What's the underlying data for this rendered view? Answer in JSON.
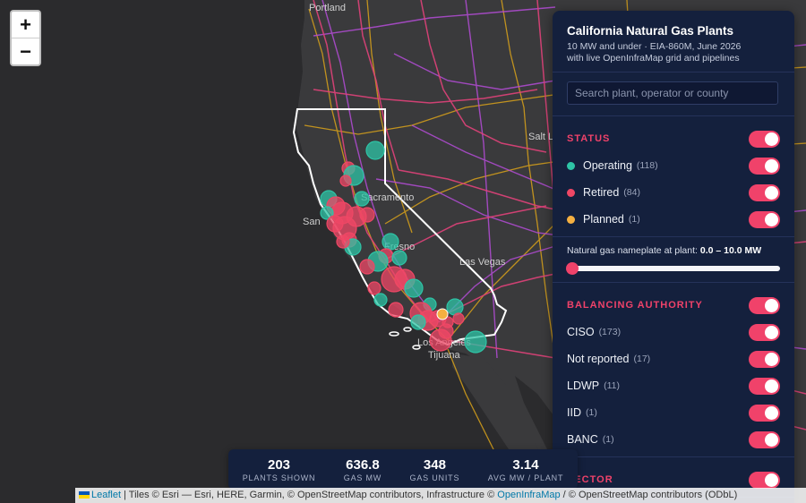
{
  "map": {
    "zoom_in": "+",
    "zoom_out": "−",
    "city_labels": [
      "Portland",
      "Salt L",
      "Sacramento",
      "San",
      "Fresno",
      "Las Vegas",
      "Los Angeles",
      "Tijuana"
    ],
    "colors": {
      "operating": "#2ec4a6",
      "retired": "#ef4765",
      "planned": "#f5b041",
      "power_lines": "#e0427a",
      "pipelines": "#b44cd6",
      "roads": "#d9a21a"
    }
  },
  "panel": {
    "title": "California Natural Gas Plants",
    "subtitle_line1": "10 MW and under · EIA-860M, June 2026",
    "subtitle_line2": "with live OpenInfraMap grid and pipelines",
    "search_placeholder": "Search plant, operator or county",
    "status": {
      "title": "STATUS",
      "items": [
        {
          "label": "Operating",
          "count": "(118)",
          "color": "#2ec4a6"
        },
        {
          "label": "Retired",
          "count": "(84)",
          "color": "#ef4765"
        },
        {
          "label": "Planned",
          "count": "(1)",
          "color": "#f5b041"
        }
      ]
    },
    "slider": {
      "label": "Natural gas nameplate at plant:",
      "range": "0.0 – 10.0",
      "unit": "MW",
      "value_fraction": 0.0
    },
    "balancing": {
      "title": "BALANCING AUTHORITY",
      "items": [
        {
          "label": "CISO",
          "count": "(173)"
        },
        {
          "label": "Not reported",
          "count": "(17)"
        },
        {
          "label": "LDWP",
          "count": "(11)"
        },
        {
          "label": "IID",
          "count": "(1)"
        },
        {
          "label": "BANC",
          "count": "(1)"
        }
      ]
    },
    "sector": {
      "title": "SECTOR"
    }
  },
  "stats": [
    {
      "value": "203",
      "label": "PLANTS SHOWN"
    },
    {
      "value": "636.8",
      "label": "GAS MW"
    },
    {
      "value": "348",
      "label": "GAS UNITS"
    },
    {
      "value": "3.14",
      "label": "AVG MW / PLANT"
    }
  ],
  "attribution": {
    "leaflet": "Leaflet",
    "text1": " | Tiles © Esri — Esri, HERE, Garmin, © OpenStreetMap contributors, Infrastructure © ",
    "openinframap": "OpenInfraMap",
    "text2": " / © OpenStreetMap contributors (ODbL)"
  }
}
